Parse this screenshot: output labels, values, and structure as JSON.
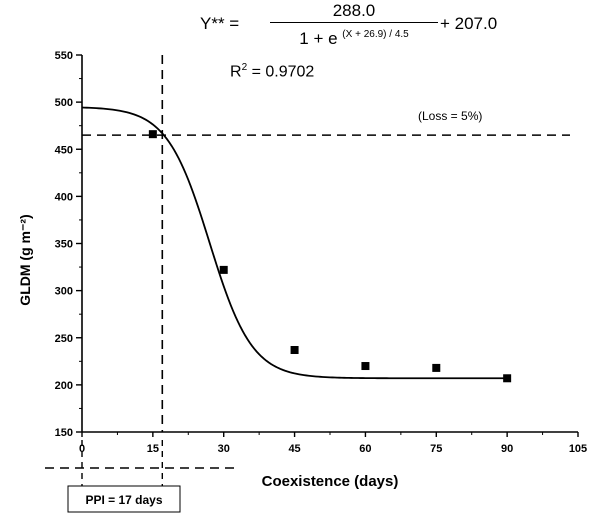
{
  "equation": {
    "lhs": "Y** =",
    "numerator": "288.0",
    "denominator_base": "1 + e",
    "denominator_exponent": "(X + 26.9) / 4.5",
    "rhs": "+ 207.0",
    "r2_label": "R",
    "r2_sup": "2",
    "r2_value": " = 0.9702"
  },
  "loss_label": "(Loss = 5%)",
  "ppi_label": "PPI = 17 days",
  "chart_data": {
    "type": "scatter",
    "xlabel": "Coexistence (days)",
    "ylabel": "GLDM (g m⁻²)",
    "xlim": [
      0,
      105
    ],
    "ylim": [
      150,
      550
    ],
    "x_ticks": [
      0,
      15,
      30,
      45,
      60,
      75,
      90,
      105
    ],
    "y_ticks": [
      150,
      200,
      250,
      300,
      350,
      400,
      450,
      500,
      550
    ],
    "points": [
      {
        "x": 15,
        "y": 466
      },
      {
        "x": 30,
        "y": 322
      },
      {
        "x": 45,
        "y": 237
      },
      {
        "x": 60,
        "y": 220
      },
      {
        "x": 75,
        "y": 218
      },
      {
        "x": 90,
        "y": 207
      }
    ],
    "loss_level_y": 465,
    "ppi_x": 17,
    "grid": false
  }
}
